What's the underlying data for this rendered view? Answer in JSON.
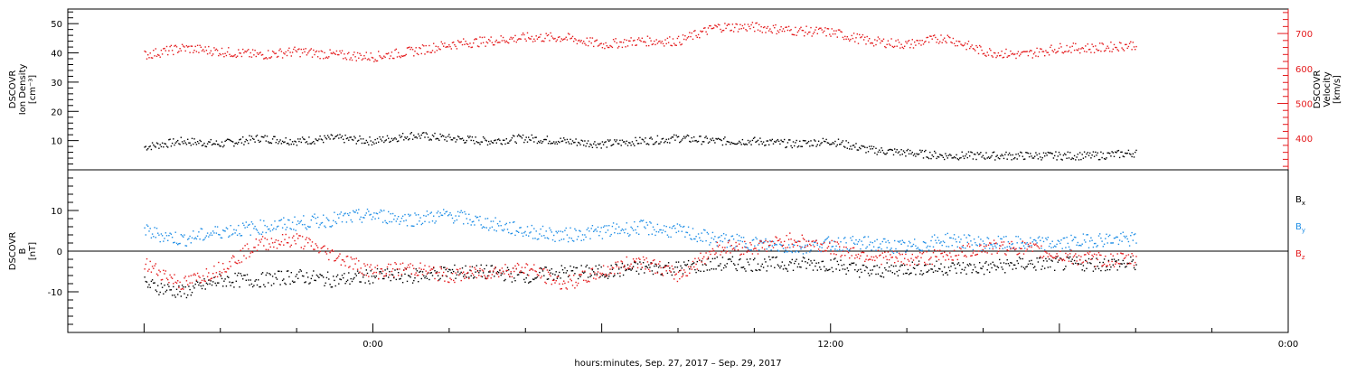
{
  "chart_data": [
    {
      "type": "scatter",
      "panel": "top",
      "ylabel_left": [
        "DSCOVR",
        "Ion Density",
        "[cm⁻³]"
      ],
      "ylabel_right": [
        "DSCOVR",
        "Velocity",
        "[km/s]"
      ],
      "ylim_left": [
        0,
        55
      ],
      "yticks_left": [
        "10",
        "20",
        "30",
        "40",
        "50"
      ],
      "ylim_right": [
        310,
        770
      ],
      "yticks_right": [
        "400",
        "500",
        "600",
        "700"
      ],
      "series": [
        {
          "axis": "left",
          "color": "#000000",
          "x": [
            -6.0,
            -5.0,
            -4.0,
            -3.0,
            -2.0,
            -1.0,
            0.0,
            1.0,
            2.0,
            3.0,
            4.0,
            5.0,
            6.0,
            7.0,
            8.0,
            9.0,
            10.0,
            11.0,
            12.0,
            13.0,
            14.0,
            15.0,
            16.0,
            17.0,
            18.0,
            19.0,
            20.0
          ],
          "values": [
            8,
            10,
            9,
            11,
            10,
            11,
            10,
            12,
            11,
            10,
            11,
            10,
            9,
            10,
            11,
            10,
            10,
            9,
            10,
            7,
            6,
            5,
            5,
            5,
            5,
            5,
            6
          ]
        },
        {
          "axis": "right",
          "color": "#e41a1c",
          "x": [
            -6.0,
            -5.0,
            -4.0,
            -3.0,
            -2.0,
            -1.0,
            0.0,
            1.0,
            2.0,
            3.0,
            4.0,
            5.0,
            6.0,
            7.0,
            8.0,
            9.0,
            10.0,
            11.0,
            12.0,
            13.0,
            14.0,
            15.0,
            16.0,
            17.0,
            18.0,
            19.0,
            20.0
          ],
          "values": [
            640,
            660,
            650,
            640,
            650,
            640,
            635,
            650,
            670,
            680,
            690,
            690,
            670,
            680,
            680,
            720,
            720,
            710,
            705,
            680,
            670,
            690,
            650,
            640,
            660,
            660,
            670
          ]
        }
      ]
    },
    {
      "type": "scatter",
      "panel": "bottom",
      "ylabel_left": [
        "DSCOVR",
        "B",
        "[nT]"
      ],
      "ylim": [
        -20,
        20
      ],
      "yticks": [
        "-10",
        "0",
        "10"
      ],
      "xlabel": "hours:minutes, Sep. 27, 2017 – Sep. 29, 2017",
      "xlim": [
        -8.0,
        24.0
      ],
      "xticks": [
        "0:00",
        "12:00",
        "0:00"
      ],
      "xtick_values": [
        0,
        12,
        24
      ],
      "zero_line": true,
      "series": [
        {
          "name": "B",
          "sub": "x",
          "color": "#000000",
          "x": [
            -6.0,
            -5.0,
            -4.0,
            -3.0,
            -2.0,
            -1.0,
            0.0,
            1.0,
            2.0,
            3.0,
            4.0,
            5.0,
            6.0,
            7.0,
            8.0,
            9.0,
            10.0,
            11.0,
            12.0,
            13.0,
            14.0,
            15.0,
            16.0,
            17.0,
            18.0,
            19.0,
            20.0
          ],
          "values": [
            -8,
            -10,
            -7,
            -7,
            -6,
            -7,
            -6,
            -6,
            -5,
            -5,
            -6,
            -5,
            -5,
            -4,
            -4,
            -3,
            -3,
            -3,
            -3,
            -5,
            -4,
            -4,
            -4,
            -3,
            -3,
            -3,
            -3
          ]
        },
        {
          "name": "B",
          "sub": "y",
          "color": "#1f8ee6",
          "x": [
            -6.0,
            -5.0,
            -4.0,
            -3.0,
            -2.0,
            -1.0,
            0.0,
            1.0,
            2.0,
            3.0,
            4.0,
            5.0,
            6.0,
            7.0,
            8.0,
            9.0,
            10.0,
            11.0,
            12.0,
            13.0,
            14.0,
            15.0,
            16.0,
            17.0,
            18.0,
            19.0,
            20.0
          ],
          "values": [
            5,
            3,
            5,
            6,
            7,
            8,
            9,
            8,
            9,
            7,
            5,
            4,
            5,
            6,
            5,
            3,
            2,
            1,
            2,
            2,
            1,
            3,
            2,
            2,
            2,
            3,
            3
          ]
        },
        {
          "name": "B",
          "sub": "z",
          "color": "#e41a1c",
          "x": [
            -6.0,
            -5.0,
            -4.0,
            -3.0,
            -2.0,
            -1.0,
            0.0,
            1.0,
            2.0,
            3.0,
            4.0,
            5.0,
            6.0,
            7.0,
            8.0,
            9.0,
            10.0,
            11.0,
            12.0,
            13.0,
            14.0,
            15.0,
            16.0,
            17.0,
            18.0,
            19.0,
            20.0
          ],
          "values": [
            -3,
            -8,
            -4,
            2,
            3,
            -1,
            -5,
            -4,
            -6,
            -5,
            -4,
            -8,
            -5,
            -2,
            -6,
            1,
            1,
            3,
            1,
            -1,
            -2,
            -1,
            1,
            1,
            -1,
            -2,
            -2
          ]
        }
      ]
    }
  ]
}
